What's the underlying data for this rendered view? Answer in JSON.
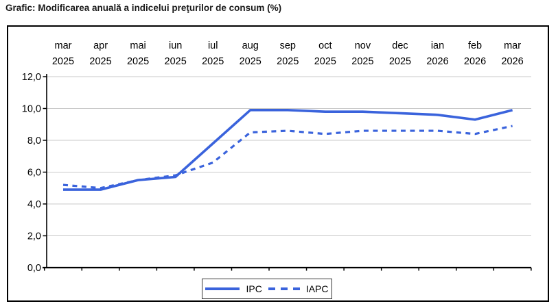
{
  "title": "Grafic: Modificarea anuală a indicelui preţurilor de consum (%)",
  "legend": {
    "ipc_label": "IPC",
    "iapc_label": "IAPC"
  },
  "colors": {
    "line_blue": "#3A63DC",
    "grid_gray": "#C9C9C9",
    "axis_black": "#000000",
    "background": "#FFFFFF"
  },
  "chart_data": {
    "type": "line",
    "title": "Grafic: Modificarea anuală a indicelui preţurilor de consum (%)",
    "categories": [
      "mar 2025",
      "apr 2025",
      "mai 2025",
      "iun 2025",
      "iul 2025",
      "aug 2025",
      "sep 2025",
      "oct 2025",
      "nov 2025",
      "dec 2025",
      "ian 2026",
      "feb 2026",
      "mar 2026"
    ],
    "category_months": [
      "mar",
      "apr",
      "mai",
      "iun",
      "iul",
      "aug",
      "sep",
      "oct",
      "nov",
      "dec",
      "ian",
      "feb",
      "mar"
    ],
    "category_years": [
      "2025",
      "2025",
      "2025",
      "2025",
      "2025",
      "2025",
      "2025",
      "2025",
      "2025",
      "2025",
      "2026",
      "2026",
      "2026"
    ],
    "series": [
      {
        "name": "IPC",
        "style": "solid",
        "values": [
          4.9,
          4.9,
          5.5,
          5.7,
          7.8,
          9.9,
          9.9,
          9.8,
          9.8,
          9.7,
          9.6,
          9.3,
          9.9
        ]
      },
      {
        "name": "IAPC",
        "style": "dashed",
        "values": [
          5.2,
          5.0,
          5.5,
          5.8,
          6.6,
          8.5,
          8.6,
          8.4,
          8.6,
          8.6,
          8.6,
          8.4,
          8.9
        ]
      }
    ],
    "ylim": [
      0,
      12
    ],
    "ytick_step": 2,
    "ytick_labels": [
      "0,0",
      "2,0",
      "4,0",
      "6,0",
      "8,0",
      "10,0",
      "12,0"
    ],
    "grid": "horizontal",
    "xlabel": "",
    "ylabel": "",
    "legend_position": "bottom-center",
    "decimal_separator": ","
  }
}
